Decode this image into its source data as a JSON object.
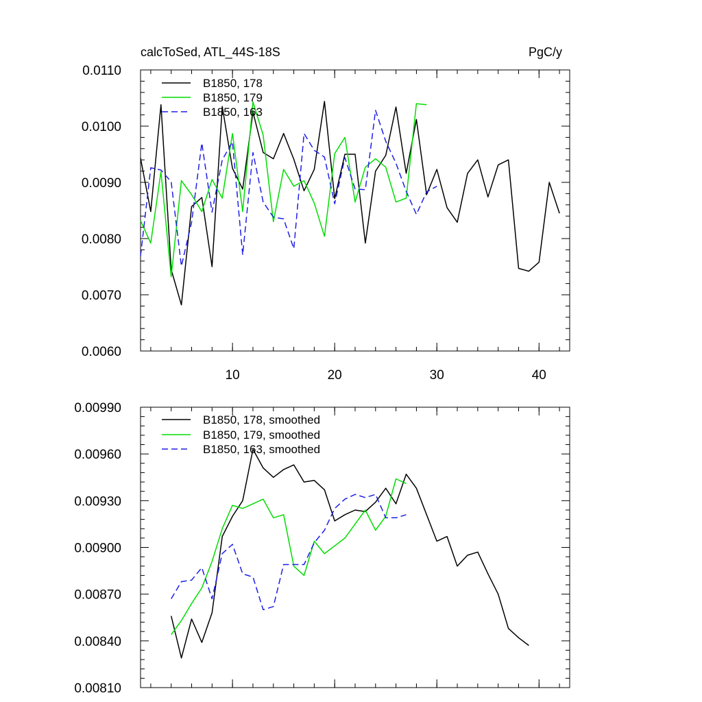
{
  "chart_data": [
    {
      "type": "line",
      "title": "calcToSed, ATL_44S-18S",
      "units": "PgC/y",
      "xlim": [
        1,
        43
      ],
      "ylim": [
        0.006,
        0.011
      ],
      "x_ticks": [
        10,
        20,
        30,
        40
      ],
      "y_ticks": [
        "0.0060",
        "0.0070",
        "0.0080",
        "0.0090",
        "0.0100",
        "0.0110"
      ],
      "series": [
        {
          "name": "B1850, 178",
          "color": "#000000",
          "dash": "solid",
          "x": [
            1,
            2,
            3,
            4,
            5,
            6,
            7,
            8,
            9,
            10,
            11,
            12,
            13,
            14,
            15,
            16,
            17,
            18,
            19,
            20,
            21,
            22,
            23,
            24,
            25,
            26,
            27,
            28,
            29,
            30,
            31,
            32,
            33,
            34,
            35,
            36,
            37,
            38,
            39,
            40,
            41,
            42
          ],
          "y": [
            0.00943,
            0.00848,
            0.01038,
            0.00745,
            0.00682,
            0.00857,
            0.00873,
            0.0075,
            0.01035,
            0.00925,
            0.00888,
            0.01025,
            0.00953,
            0.00942,
            0.00987,
            0.00941,
            0.00885,
            0.00923,
            0.01044,
            0.00871,
            0.0095,
            0.0095,
            0.00792,
            0.0092,
            0.00948,
            0.01034,
            0.00916,
            0.01012,
            0.00878,
            0.00923,
            0.00855,
            0.00829,
            0.00916,
            0.0094,
            0.00874,
            0.00931,
            0.0094,
            0.00747,
            0.00742,
            0.00758,
            0.009,
            0.00845
          ]
        },
        {
          "name": "B1850, 179",
          "color": "#00dd00",
          "dash": "solid",
          "x": [
            1,
            2,
            3,
            4,
            5,
            6,
            7,
            8,
            9,
            10,
            11,
            12,
            13,
            14,
            15,
            16,
            17,
            18,
            19,
            20,
            21,
            22,
            23,
            24,
            25,
            26,
            27,
            28,
            29
          ],
          "y": [
            0.00832,
            0.00792,
            0.00919,
            0.00732,
            0.00903,
            0.00878,
            0.00848,
            0.00905,
            0.00872,
            0.00987,
            0.00848,
            0.01043,
            0.00984,
            0.0083,
            0.00923,
            0.00893,
            0.00903,
            0.00863,
            0.00804,
            0.00951,
            0.0098,
            0.00865,
            0.00927,
            0.00942,
            0.00927,
            0.00865,
            0.00872,
            0.0104,
            0.01038
          ]
        },
        {
          "name": "B1850, 163",
          "color": "#1e1ee6",
          "dash": "dashed",
          "x": [
            1,
            2,
            3,
            4,
            5,
            6,
            7,
            8,
            9,
            10,
            11,
            12,
            13,
            14,
            15,
            16,
            17,
            18,
            19,
            20,
            21,
            22,
            23,
            24,
            25,
            26,
            27,
            28,
            29,
            30
          ],
          "y": [
            0.00769,
            0.00926,
            0.00922,
            0.00901,
            0.00751,
            0.00829,
            0.0097,
            0.00847,
            0.0094,
            0.00972,
            0.00771,
            0.00953,
            0.00865,
            0.00838,
            0.00835,
            0.00782,
            0.00987,
            0.00957,
            0.00945,
            0.00862,
            0.00944,
            0.00888,
            0.00887,
            0.01028,
            0.00973,
            0.00934,
            0.00884,
            0.00843,
            0.00883,
            0.00893
          ]
        }
      ],
      "legend": "top-left"
    },
    {
      "type": "line",
      "xlim": [
        1,
        43
      ],
      "ylim": [
        0.0081,
        0.0099
      ],
      "y_ticks": [
        "0.00810",
        "0.00840",
        "0.00870",
        "0.00900",
        "0.00930",
        "0.00960",
        "0.00990"
      ],
      "x_ticks": [
        10,
        20,
        30,
        40
      ],
      "series": [
        {
          "name": "B1850, 178, smoothed",
          "color": "#000000",
          "dash": "solid",
          "x": [
            4,
            5,
            6,
            7,
            8,
            9,
            10,
            11,
            12,
            13,
            14,
            15,
            16,
            17,
            18,
            19,
            20,
            21,
            22,
            23,
            24,
            25,
            26,
            27,
            28,
            29,
            30,
            31,
            32,
            33,
            34,
            35,
            36,
            37,
            38,
            39
          ],
          "y": [
            0.00856,
            0.00829,
            0.00854,
            0.00839,
            0.00858,
            0.00907,
            0.0092,
            0.0093,
            0.00963,
            0.00951,
            0.00945,
            0.0095,
            0.00953,
            0.00942,
            0.00943,
            0.00937,
            0.00917,
            0.00921,
            0.00924,
            0.00923,
            0.00929,
            0.00938,
            0.00928,
            0.00947,
            0.00938,
            0.00921,
            0.00904,
            0.00907,
            0.00888,
            0.00895,
            0.00897,
            0.00883,
            0.0087,
            0.00848,
            0.00842,
            0.00837
          ]
        },
        {
          "name": "B1850, 179, smoothed",
          "color": "#00dd00",
          "dash": "solid",
          "x": [
            4,
            5,
            6,
            7,
            8,
            9,
            10,
            11,
            12,
            13,
            14,
            15,
            16,
            17,
            18,
            19,
            20,
            21,
            22,
            23,
            24,
            25,
            26,
            27
          ],
          "y": [
            0.00844,
            0.00853,
            0.00864,
            0.00874,
            0.00891,
            0.00912,
            0.00927,
            0.00925,
            0.00928,
            0.00931,
            0.00919,
            0.00921,
            0.00888,
            0.00882,
            0.00904,
            0.00896,
            0.00901,
            0.00906,
            0.00915,
            0.00924,
            0.00911,
            0.0092,
            0.00944,
            0.00941
          ]
        },
        {
          "name": "B1850, 163, smoothed",
          "color": "#1e1ee6",
          "dash": "dashed",
          "x": [
            4,
            5,
            6,
            7,
            8,
            9,
            10,
            11,
            12,
            13,
            14,
            15,
            16,
            17,
            18,
            19,
            20,
            21,
            22,
            23,
            24,
            25,
            26,
            27
          ],
          "y": [
            0.00867,
            0.00878,
            0.00879,
            0.00887,
            0.00867,
            0.00896,
            0.00902,
            0.00883,
            0.00881,
            0.0086,
            0.00862,
            0.00889,
            0.00889,
            0.00889,
            0.00903,
            0.00911,
            0.00925,
            0.00931,
            0.00934,
            0.00932,
            0.00934,
            0.00919,
            0.00919,
            0.00921
          ]
        }
      ],
      "legend": "top-left"
    }
  ]
}
